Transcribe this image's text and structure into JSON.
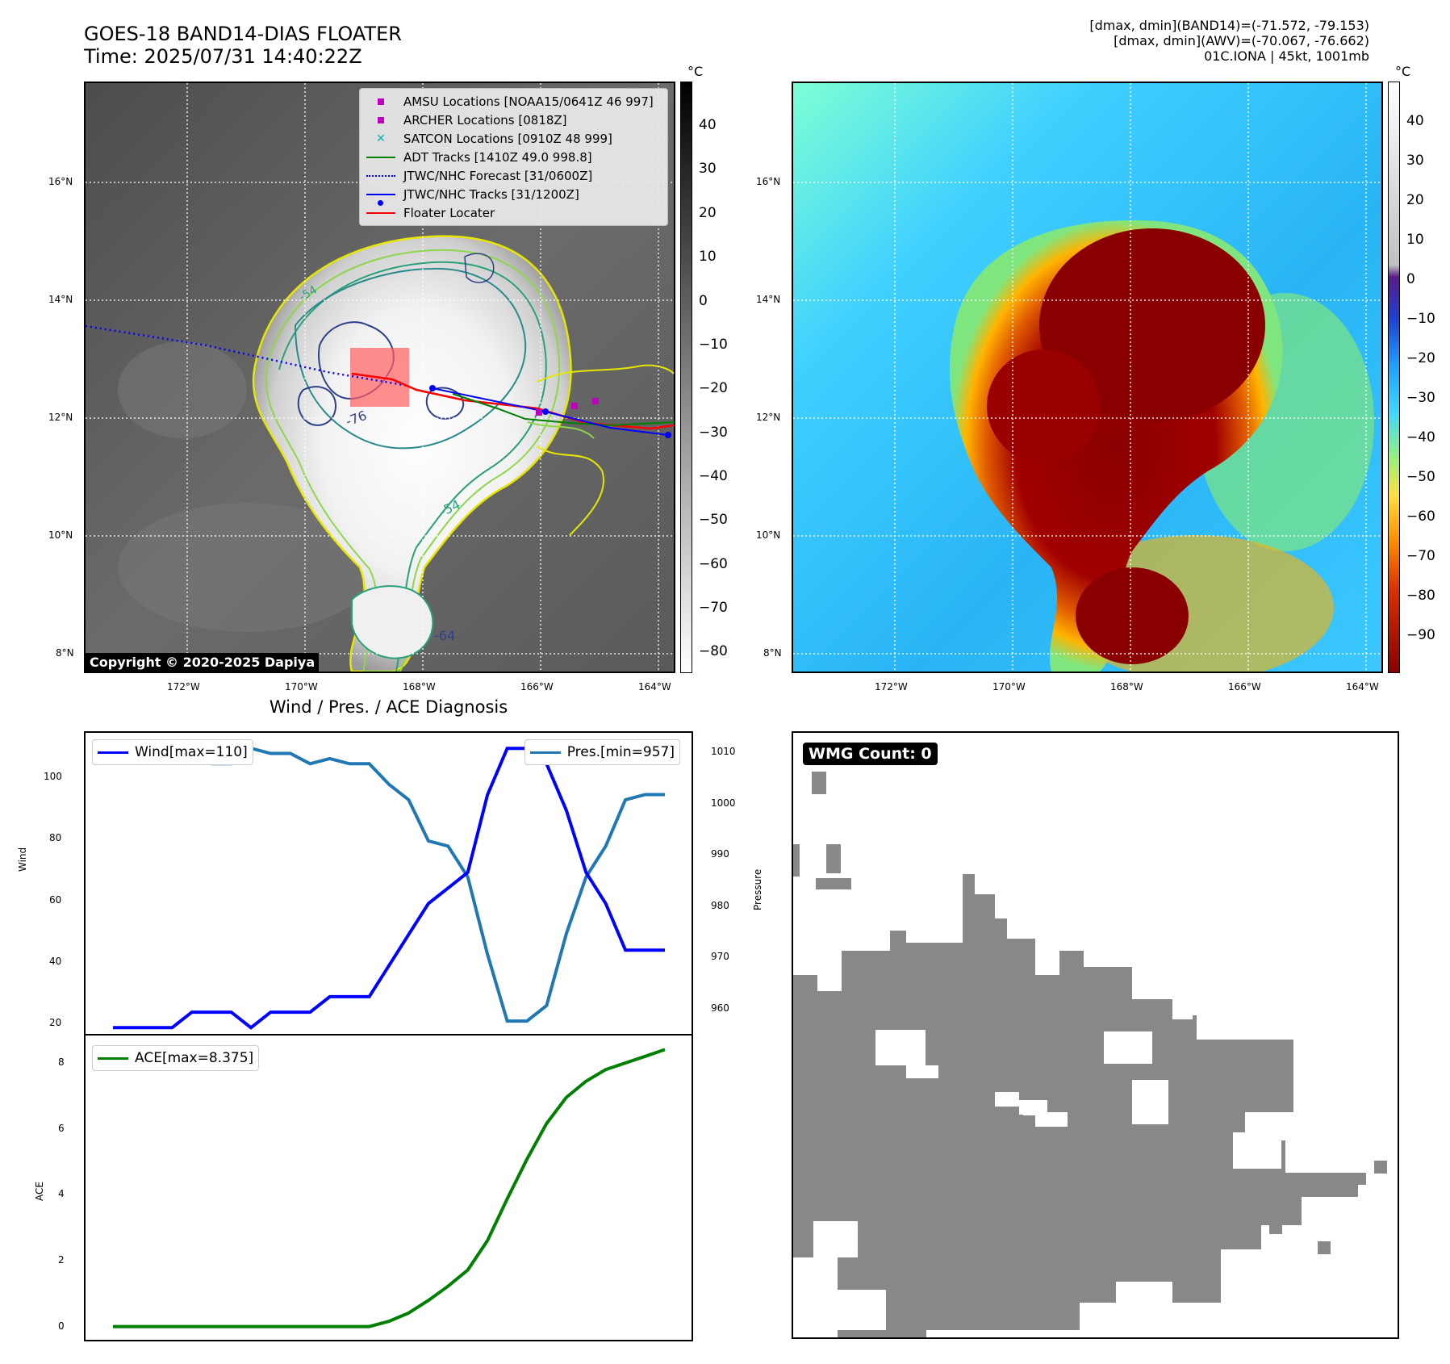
{
  "header": {
    "title_line1": "GOES-18 BAND14-DIAS FLOATER",
    "title_line2": "Time: 2025/07/31 14:40:22Z",
    "info_line1": "[dmax, dmin](BAND14)=(-71.572, -79.153)",
    "info_line2": "[dmax, dmin](AWV)=(-70.067, -76.662)",
    "info_line3": "01C.IONA | 45kt, 1001mb"
  },
  "ir_map": {
    "lon_ticks": [
      "172°W",
      "170°W",
      "168°W",
      "166°W",
      "164°W"
    ],
    "lat_ticks": [
      "16°N",
      "14°N",
      "12°N",
      "10°N",
      "8°N"
    ],
    "contour_labels": [
      "-76",
      "-54",
      "-64",
      "-54"
    ],
    "copyright": "Copyright © 2020-2025 Dapiya",
    "legend": [
      {
        "label": "AMSU Locations [NOAA15/0641Z 46 997]",
        "color": "#c000c0",
        "marker": "square"
      },
      {
        "label": "ARCHER Locations [0818Z]",
        "color": "#c000c0",
        "marker": "square"
      },
      {
        "label": "SATCON Locations [0910Z 48 999]",
        "color": "#00b0b0",
        "marker": "x"
      },
      {
        "label": "ADT Tracks [1410Z 49.0 998.8]",
        "color": "#008000",
        "marker": "line"
      },
      {
        "label": "JTWC/NHC Forecast [31/0600Z]",
        "color": "#0000ff",
        "marker": "dotted"
      },
      {
        "label": "JTWC/NHC Tracks [31/1200Z]",
        "color": "#0000ff",
        "marker": "line-dot"
      },
      {
        "label": "Floater Locater",
        "color": "#ff0000",
        "marker": "line"
      }
    ],
    "colorbar_unit": "°C",
    "colorbar_ticks": [
      "40",
      "30",
      "20",
      "10",
      "0",
      "−10",
      "−20",
      "−30",
      "−40",
      "−50",
      "−60",
      "−70",
      "−80"
    ]
  },
  "awv_map": {
    "lon_ticks": [
      "172°W",
      "170°W",
      "168°W",
      "166°W",
      "164°W"
    ],
    "lat_ticks": [
      "16°N",
      "14°N",
      "12°N",
      "10°N",
      "8°N"
    ],
    "colorbar_unit": "°C",
    "colorbar_ticks": [
      "40",
      "30",
      "20",
      "10",
      "0",
      "−10",
      "−20",
      "−30",
      "−40",
      "−50",
      "−60",
      "−70",
      "−80",
      "−90"
    ]
  },
  "diagnosis": {
    "title": "Wind / Pres. / ACE Diagnosis",
    "wind_ylabel": "Wind",
    "pres_ylabel": "Pressure",
    "ace_ylabel": "ACE",
    "wind_legend": "Wind[max=110]",
    "pres_legend": "Pres.[min=957]",
    "ace_legend": "ACE[max=8.375]",
    "wind_ticks": [
      "100",
      "80",
      "60",
      "40",
      "20"
    ],
    "pres_ticks": [
      "1010",
      "1000",
      "990",
      "980",
      "970",
      "960"
    ],
    "ace_ticks": [
      "8",
      "6",
      "4",
      "2",
      "0"
    ]
  },
  "wmg": {
    "label": "WMG Count: 0"
  },
  "chart_data": [
    {
      "type": "line",
      "title": "Wind / Pres. / ACE Diagnosis",
      "ylabel": "Wind",
      "ylim": [
        18,
        115
      ],
      "series": [
        {
          "name": "Wind[max=110]",
          "color": "#0000ff",
          "values": [
            20,
            20,
            20,
            20,
            25,
            25,
            25,
            20,
            25,
            25,
            25,
            30,
            30,
            30,
            40,
            50,
            60,
            65,
            70,
            95,
            110,
            110,
            105,
            90,
            70,
            60,
            45,
            45,
            45
          ]
        }
      ]
    },
    {
      "type": "line",
      "ylabel": "Pressure",
      "ylim": [
        954.5,
        1013
      ],
      "series": [
        {
          "name": "Pres.[min=957]",
          "color": "#1f77b4",
          "values": [
            1009,
            1009,
            1009,
            1008,
            1008,
            1007,
            1007,
            1010,
            1009,
            1009,
            1007,
            1008,
            1007,
            1007,
            1003,
            1000,
            992,
            991,
            985,
            970,
            957,
            957,
            960,
            974,
            985,
            991,
            1000,
            1001,
            1001
          ]
        }
      ]
    },
    {
      "type": "line",
      "ylabel": "ACE",
      "ylim": [
        -0.4,
        8.8
      ],
      "series": [
        {
          "name": "ACE[max=8.375]",
          "color": "#008000",
          "values": [
            0,
            0,
            0,
            0,
            0,
            0,
            0,
            0,
            0,
            0,
            0,
            0,
            0,
            0,
            0.16,
            0.41,
            0.79,
            1.22,
            1.71,
            2.6,
            3.86,
            5.06,
            6.14,
            6.93,
            7.42,
            7.77,
            7.97,
            8.17,
            8.375
          ]
        }
      ]
    }
  ]
}
